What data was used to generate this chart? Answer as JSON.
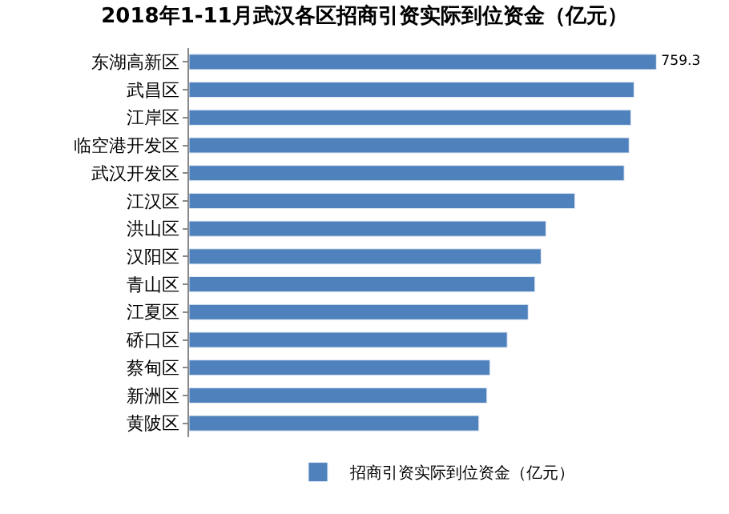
{
  "chart_data": {
    "type": "bar",
    "orientation": "horizontal",
    "title": "2018年1-11月武汉各区招商引资实际到位资金（亿元）",
    "categories": [
      "东湖高新区",
      "武昌区",
      "江岸区",
      "临空港开发区",
      "武汉开发区",
      "江汉区",
      "洪山区",
      "汉阳区",
      "青山区",
      "江夏区",
      "硚口区",
      "蔡甸区",
      "新洲区",
      "黄陂区"
    ],
    "series": [
      {
        "name": "招商引资实际到位资金（亿元）",
        "color": "#4f81bd",
        "values": [
          759.3,
          723,
          718,
          715,
          707,
          627,
          580,
          572,
          562,
          551,
          517,
          489,
          484,
          471
        ],
        "value_labels": [
          "759.3",
          null,
          null,
          null,
          null,
          null,
          null,
          null,
          null,
          null,
          null,
          null,
          null,
          null
        ]
      }
    ],
    "tick_labels": "y",
    "legend": "bottom"
  }
}
